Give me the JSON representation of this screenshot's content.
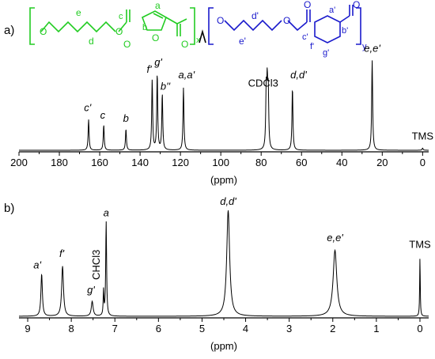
{
  "panels": {
    "a": {
      "label": "a)"
    },
    "b": {
      "label": "b)"
    }
  },
  "structure": {
    "green_part": {
      "color": "#22cc22",
      "letters": [
        "e",
        "d",
        "c",
        "a",
        "b"
      ],
      "atoms": [
        "O",
        "O",
        "O",
        "O",
        "O"
      ],
      "subscript": "x"
    },
    "blue_part": {
      "color": "#1a1acc",
      "letters": [
        "d'",
        "e'",
        "c'",
        "a'",
        "b'",
        "f'",
        "g'"
      ],
      "atoms": [
        "O",
        "O",
        "O",
        "O"
      ],
      "subscript": "y"
    }
  },
  "chart_data": [
    {
      "type": "line",
      "panel": "a",
      "description_of_axis": "13C NMR",
      "xlabel": "(ppm)",
      "xlim": [
        200,
        -3
      ],
      "x_reversed": true,
      "x_ticks": [
        200,
        180,
        160,
        140,
        120,
        100,
        80,
        60,
        40,
        20,
        0
      ],
      "y_visible": false,
      "peaks": [
        {
          "x": 165.5,
          "height": 0.29
        },
        {
          "x": 158.0,
          "height": 0.24
        },
        {
          "x": 147.0,
          "height": 0.2
        },
        {
          "x": 134.0,
          "height": 0.66
        },
        {
          "x": 131.5,
          "height": 0.72
        },
        {
          "x": 129.0,
          "height": 0.53
        },
        {
          "x": 118.5,
          "height": 0.59
        },
        {
          "x": 77.5,
          "height": 0.52
        },
        {
          "x": 77.0,
          "height": 0.54
        },
        {
          "x": 76.5,
          "height": 0.52
        },
        {
          "x": 64.5,
          "height": 0.59
        },
        {
          "x": 25.0,
          "height": 0.85
        },
        {
          "x": 0.0,
          "height": 0.02
        }
      ],
      "annotations": [
        {
          "text": "c'",
          "x": 166,
          "height": 0.37,
          "italic": true
        },
        {
          "text": "c",
          "x": 158.5,
          "height": 0.3,
          "italic": true
        },
        {
          "text": "b",
          "x": 147,
          "height": 0.27,
          "italic": true
        },
        {
          "text": "f'",
          "x": 135.5,
          "height": 0.73,
          "italic": true
        },
        {
          "text": "g'",
          "x": 131,
          "height": 0.8,
          "italic": true
        },
        {
          "text": "b''",
          "x": 127.5,
          "height": 0.57,
          "italic": true
        },
        {
          "text": "a,a'",
          "x": 117,
          "height": 0.68,
          "italic": true
        },
        {
          "text": "CDCl3",
          "x": 79,
          "height": 0.6,
          "italic": false
        },
        {
          "text": "d,d'",
          "x": 61.5,
          "height": 0.68,
          "italic": true
        },
        {
          "text": "e,e'",
          "x": 25,
          "height": 0.93,
          "italic": true
        },
        {
          "text": "TMS",
          "x": 0,
          "height": 0.1,
          "italic": false
        }
      ]
    },
    {
      "type": "line",
      "panel": "b",
      "description_of_axis": "1H NMR",
      "xlabel": "(ppm)",
      "xlim": [
        9.2,
        -0.2
      ],
      "x_reversed": true,
      "x_ticks": [
        9,
        8,
        7,
        6,
        5,
        4,
        3,
        2,
        1,
        0
      ],
      "y_visible": false,
      "peaks": [
        {
          "x": 8.68,
          "height": 0.37,
          "width": 0.02
        },
        {
          "x": 8.2,
          "height": 0.44,
          "width": 0.025
        },
        {
          "x": 7.52,
          "height": 0.13,
          "width": 0.025
        },
        {
          "x": 7.26,
          "height": 0.22,
          "width": 0.01
        },
        {
          "x": 7.2,
          "height": 0.83,
          "width": 0.012
        },
        {
          "x": 4.4,
          "height": 0.93,
          "width": 0.04
        },
        {
          "x": 1.95,
          "height": 0.58,
          "width": 0.05
        },
        {
          "x": 0.0,
          "height": 0.52,
          "width": 0.008
        }
      ],
      "annotations": [
        {
          "text": "a'",
          "x": 8.78,
          "height": 0.42,
          "italic": true
        },
        {
          "text": "f'",
          "x": 8.22,
          "height": 0.52,
          "italic": true
        },
        {
          "text": "g'",
          "x": 7.55,
          "height": 0.2,
          "italic": true
        },
        {
          "text": "CHCl3",
          "x": 7.35,
          "height": 0.32,
          "italic": false,
          "rotated": true
        },
        {
          "text": "a",
          "x": 7.2,
          "height": 0.88,
          "italic": true
        },
        {
          "text": "d,d'",
          "x": 4.4,
          "height": 0.98,
          "italic": true
        },
        {
          "text": "e,e'",
          "x": 1.95,
          "height": 0.66,
          "italic": true
        },
        {
          "text": "TMS",
          "x": 0.0,
          "height": 0.6,
          "italic": false
        }
      ]
    }
  ]
}
